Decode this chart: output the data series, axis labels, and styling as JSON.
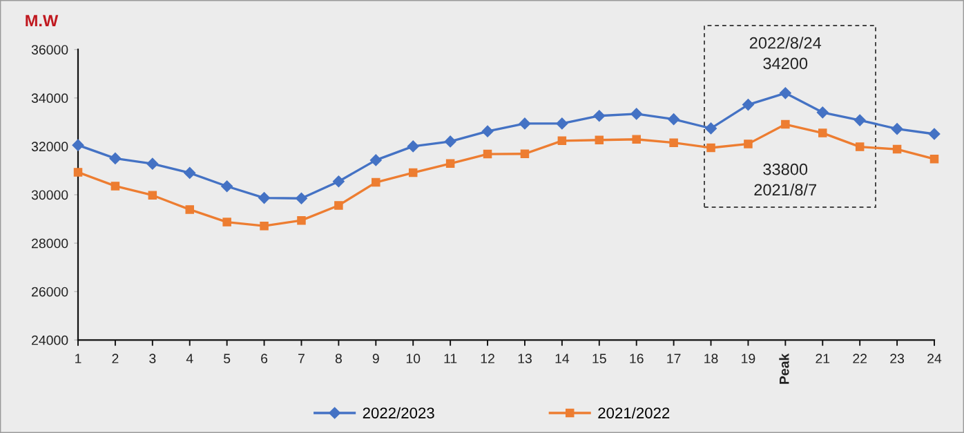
{
  "chart_data": {
    "type": "line",
    "ylabel": "M.W",
    "categories": [
      "1",
      "2",
      "3",
      "4",
      "5",
      "6",
      "7",
      "8",
      "9",
      "10",
      "11",
      "12",
      "13",
      "14",
      "15",
      "16",
      "17",
      "18",
      "19",
      "Peak",
      "21",
      "22",
      "23",
      "24"
    ],
    "series": [
      {
        "name": "2022/2023",
        "color": "#4472c4",
        "marker": "diamond",
        "values": [
          32050,
          31500,
          31280,
          30900,
          30350,
          29870,
          29850,
          30550,
          31430,
          32000,
          32200,
          32620,
          32940,
          32940,
          33260,
          33340,
          33120,
          32740,
          33720,
          34200,
          33400,
          33080,
          32720,
          32510
        ]
      },
      {
        "name": "2021/2022",
        "color": "#ed7d31",
        "marker": "square",
        "values": [
          30930,
          30360,
          29980,
          29390,
          28870,
          28710,
          28940,
          29560,
          30510,
          30910,
          31290,
          31680,
          31690,
          32230,
          32260,
          32290,
          32150,
          31940,
          32100,
          32910,
          32550,
          31980,
          31880,
          31480
        ]
      }
    ],
    "ylim": [
      24000,
      36000
    ],
    "yticks": [
      24000,
      26000,
      28000,
      30000,
      32000,
      34000,
      36000
    ],
    "grid": false,
    "legend": "bottom",
    "line_style": "solid",
    "annotations": [
      "2022/8/24\n34200",
      "33800\n2021/8/7"
    ]
  }
}
